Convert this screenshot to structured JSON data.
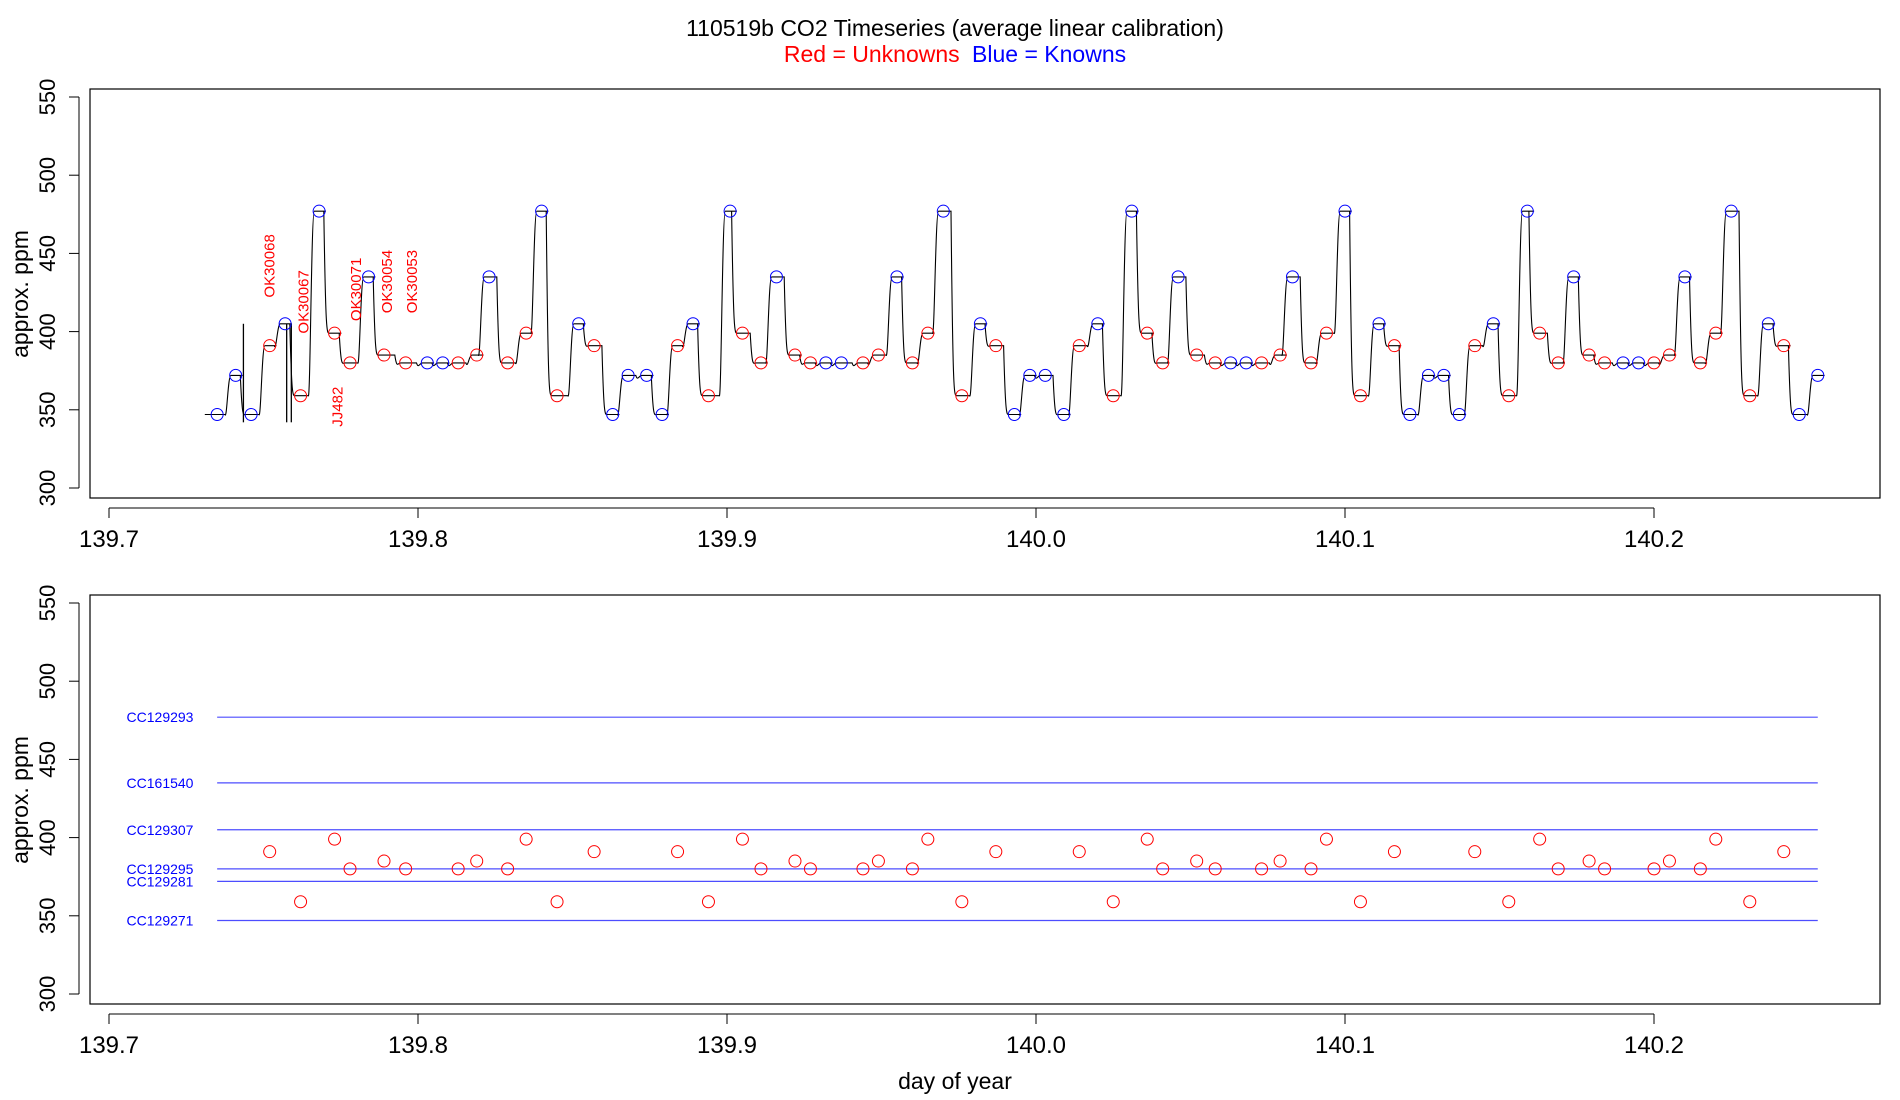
{
  "title": "110519b   CO2 Timeseries (average linear calibration)",
  "subtitle": {
    "red": "Red = Unknowns",
    "blue": "Blue = Knowns"
  },
  "colors": {
    "unknown": "#ff0000",
    "known": "#0000ff",
    "trace": "#000000",
    "ref_line": "#4d4dff"
  },
  "chart_data": [
    {
      "type": "line",
      "name": "timeseries",
      "ylabel": "approx. ppm",
      "xlabel": "",
      "xlim": [
        139.7,
        140.25
      ],
      "ylim": [
        300,
        550
      ],
      "xticks": [
        "139.7",
        "139.8",
        "139.9",
        "140.0",
        "140.1",
        "140.2"
      ],
      "yticks": [
        "300",
        "350",
        "400",
        "450",
        "500",
        "550"
      ],
      "known_points": [
        [
          139.735,
          347
        ],
        [
          139.741,
          372
        ],
        [
          139.746,
          347
        ],
        [
          139.757,
          405
        ],
        [
          139.768,
          477
        ],
        [
          139.784,
          435
        ],
        [
          139.803,
          380
        ],
        [
          139.808,
          380
        ],
        [
          139.823,
          435
        ],
        [
          139.84,
          477
        ],
        [
          139.852,
          405
        ],
        [
          139.863,
          347
        ],
        [
          139.868,
          372
        ],
        [
          139.874,
          372
        ],
        [
          139.879,
          347
        ],
        [
          139.889,
          405
        ],
        [
          139.901,
          477
        ],
        [
          139.916,
          435
        ],
        [
          139.932,
          380
        ],
        [
          139.937,
          380
        ],
        [
          139.955,
          435
        ],
        [
          139.97,
          477
        ],
        [
          139.982,
          405
        ],
        [
          139.993,
          347
        ],
        [
          139.998,
          372
        ],
        [
          140.003,
          372
        ],
        [
          140.009,
          347
        ],
        [
          140.02,
          405
        ],
        [
          140.031,
          477
        ],
        [
          140.046,
          435
        ],
        [
          140.063,
          380
        ],
        [
          140.068,
          380
        ],
        [
          140.083,
          435
        ],
        [
          140.1,
          477
        ],
        [
          140.111,
          405
        ],
        [
          140.121,
          347
        ],
        [
          140.127,
          372
        ],
        [
          140.132,
          372
        ],
        [
          140.137,
          347
        ],
        [
          140.148,
          405
        ],
        [
          140.159,
          477
        ],
        [
          140.174,
          435
        ],
        [
          140.19,
          380
        ],
        [
          140.195,
          380
        ],
        [
          140.21,
          435
        ],
        [
          140.225,
          477
        ],
        [
          140.237,
          405
        ],
        [
          140.247,
          347
        ],
        [
          140.253,
          372
        ]
      ],
      "unknown_points": [
        [
          139.752,
          391
        ],
        [
          139.762,
          359
        ],
        [
          139.773,
          399
        ],
        [
          139.778,
          380
        ],
        [
          139.789,
          385
        ],
        [
          139.796,
          380
        ],
        [
          139.813,
          380
        ],
        [
          139.819,
          385
        ],
        [
          139.829,
          380
        ],
        [
          139.835,
          399
        ],
        [
          139.845,
          359
        ],
        [
          139.857,
          391
        ],
        [
          139.884,
          391
        ],
        [
          139.894,
          359
        ],
        [
          139.905,
          399
        ],
        [
          139.911,
          380
        ],
        [
          139.922,
          385
        ],
        [
          139.927,
          380
        ],
        [
          139.944,
          380
        ],
        [
          139.949,
          385
        ],
        [
          139.96,
          380
        ],
        [
          139.965,
          399
        ],
        [
          139.976,
          359
        ],
        [
          139.987,
          391
        ],
        [
          140.014,
          391
        ],
        [
          140.025,
          359
        ],
        [
          140.036,
          399
        ],
        [
          140.041,
          380
        ],
        [
          140.052,
          385
        ],
        [
          140.058,
          380
        ],
        [
          140.073,
          380
        ],
        [
          140.079,
          385
        ],
        [
          140.089,
          380
        ],
        [
          140.094,
          399
        ],
        [
          140.105,
          359
        ],
        [
          140.116,
          391
        ],
        [
          140.142,
          391
        ],
        [
          140.153,
          359
        ],
        [
          140.163,
          399
        ],
        [
          140.169,
          380
        ],
        [
          140.179,
          385
        ],
        [
          140.184,
          380
        ],
        [
          140.2,
          380
        ],
        [
          140.205,
          385
        ],
        [
          140.215,
          380
        ],
        [
          140.22,
          399
        ],
        [
          140.231,
          359
        ],
        [
          140.242,
          391
        ]
      ],
      "tank_labels": [
        {
          "text": "OK30068",
          "x": 139.752,
          "y": 442
        },
        {
          "text": "OK30067",
          "x": 139.763,
          "y": 419
        },
        {
          "text": "JJ482",
          "x": 139.774,
          "y": 352
        },
        {
          "text": "OK30071",
          "x": 139.78,
          "y": 427
        },
        {
          "text": "OK30054",
          "x": 139.79,
          "y": 432
        },
        {
          "text": "OK30053",
          "x": 139.798,
          "y": 432
        }
      ]
    },
    {
      "type": "scatter",
      "name": "unknowns_vs_references",
      "ylabel": "approx. ppm",
      "xlabel": "day of year",
      "xlim": [
        139.7,
        140.25
      ],
      "ylim": [
        300,
        550
      ],
      "xticks": [
        "139.7",
        "139.8",
        "139.9",
        "140.0",
        "140.1",
        "140.2"
      ],
      "yticks": [
        "300",
        "350",
        "400",
        "450",
        "500",
        "550"
      ],
      "reference_lines": [
        {
          "label": "CC129293",
          "value": 477
        },
        {
          "label": "CC161540",
          "value": 435
        },
        {
          "label": "CC129307",
          "value": 405
        },
        {
          "label": "CC129295",
          "value": 380
        },
        {
          "label": "CC129281",
          "value": 372
        },
        {
          "label": "CC129271",
          "value": 347
        }
      ],
      "line_range": [
        139.735,
        140.253
      ],
      "unknown_points": "same as timeseries unknown_points"
    }
  ]
}
